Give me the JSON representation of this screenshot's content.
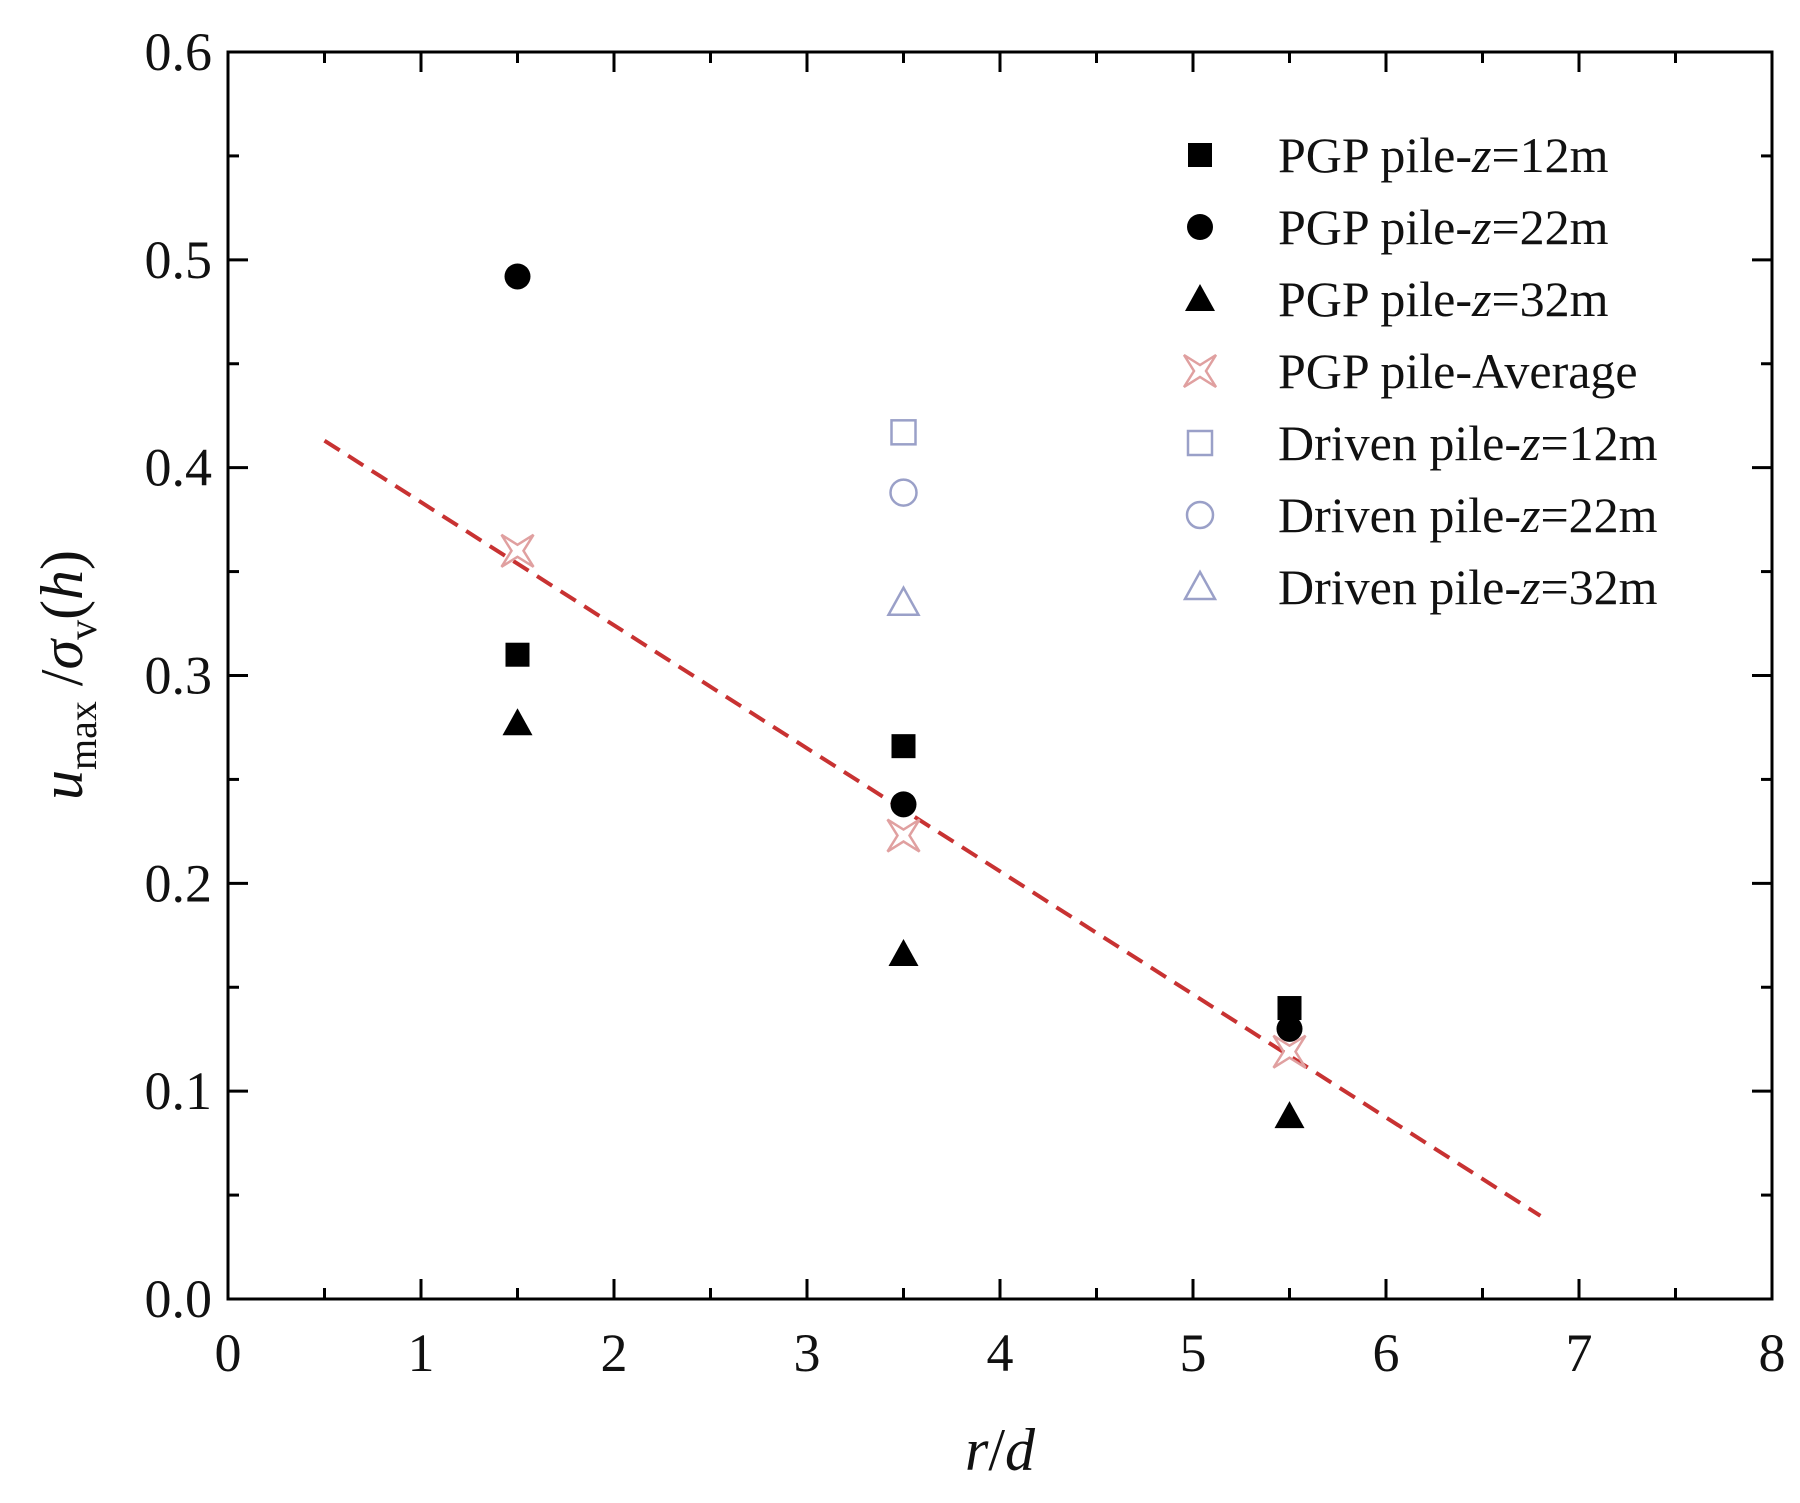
{
  "chart_data": {
    "type": "scatter",
    "title": "",
    "xlabel": "r/d",
    "ylabel": "u_max/σ_v(h)",
    "xlim": [
      0,
      8
    ],
    "ylim": [
      0.0,
      0.6
    ],
    "xticks": [
      "0",
      "1",
      "2",
      "3",
      "4",
      "5",
      "6",
      "7",
      "8"
    ],
    "yticks": [
      "0.0",
      "0.1",
      "0.2",
      "0.3",
      "0.4",
      "0.5",
      "0.6"
    ],
    "grid": false,
    "legend_position": "top-right",
    "series": [
      {
        "name": "PGP pile-z=12m",
        "marker": "square-filled",
        "color": "#000000",
        "x": [
          1.5,
          3.5,
          5.5
        ],
        "y": [
          0.31,
          0.266,
          0.14
        ]
      },
      {
        "name": "PGP pile-z=22m",
        "marker": "circle-filled",
        "color": "#000000",
        "x": [
          1.5,
          3.5,
          5.5
        ],
        "y": [
          0.492,
          0.238,
          0.13
        ]
      },
      {
        "name": "PGP pile-z=32m",
        "marker": "triangle-filled",
        "color": "#000000",
        "x": [
          1.5,
          3.5,
          5.5
        ],
        "y": [
          0.277,
          0.166,
          0.088
        ]
      },
      {
        "name": "PGP pile-Average",
        "marker": "cross-open",
        "color": "#e0a0a0",
        "x": [
          1.5,
          3.5,
          5.5
        ],
        "y": [
          0.36,
          0.223,
          0.119
        ]
      },
      {
        "name": "Driven pile-z=12m",
        "marker": "square-open",
        "color": "#9aa0c8",
        "x": [
          3.5
        ],
        "y": [
          0.417
        ]
      },
      {
        "name": "Driven pile-z=22m",
        "marker": "circle-open",
        "color": "#9aa0c8",
        "x": [
          3.5
        ],
        "y": [
          0.388
        ]
      },
      {
        "name": "Driven pile-z=32m",
        "marker": "triangle-open",
        "color": "#9aa0c8",
        "x": [
          3.5
        ],
        "y": [
          0.335
        ]
      }
    ],
    "fit_line": {
      "style": "dashed",
      "color": "#c83232",
      "x": [
        0.5,
        6.8
      ],
      "y": [
        0.413,
        0.04
      ]
    }
  }
}
